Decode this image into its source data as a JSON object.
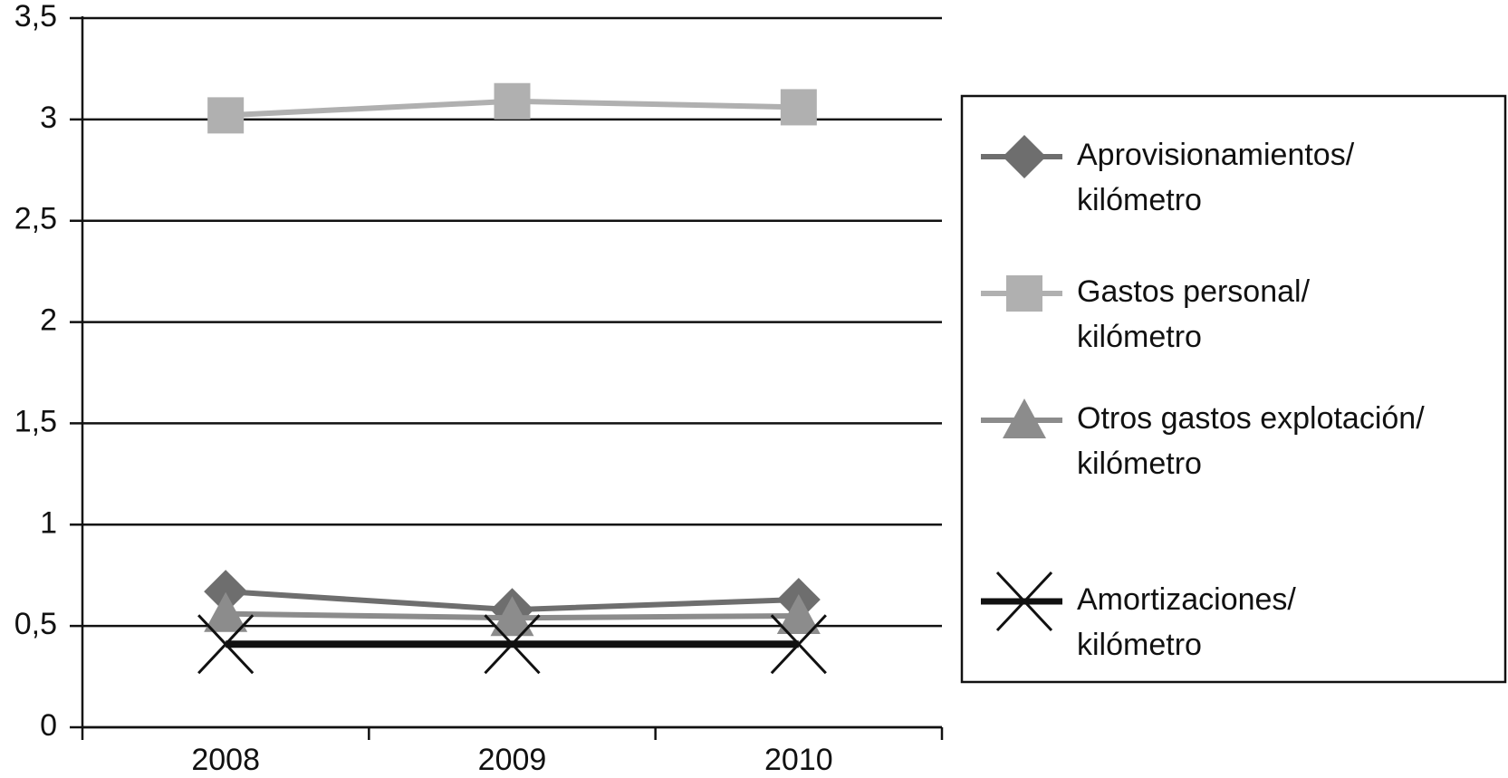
{
  "chart_data": {
    "type": "line",
    "categories": [
      "2008",
      "2009",
      "2010"
    ],
    "series": [
      {
        "name": "Aprovisionamientos/\nkilómetro",
        "color": "#6e6e6e",
        "marker": "diamond",
        "values": [
          0.67,
          0.58,
          0.63
        ]
      },
      {
        "name": "Gastos personal/\nkilómetro",
        "color": "#b0b0b0",
        "marker": "square",
        "values": [
          3.02,
          3.09,
          3.06
        ]
      },
      {
        "name": "Otros gastos explotación/\nkilómetro",
        "color": "#8c8c8c",
        "marker": "triangle",
        "values": [
          0.56,
          0.54,
          0.55
        ]
      },
      {
        "name": "Amortizaciones/\nkilómetro",
        "color": "#111111",
        "marker": "x",
        "values": [
          0.41,
          0.41,
          0.41
        ]
      }
    ],
    "ylim": [
      0,
      3.5
    ],
    "yticks": [
      0,
      {
        "value": 0.5,
        "label": "0,5"
      },
      1,
      {
        "value": 1.5,
        "label": "1,5"
      },
      2,
      {
        "value": 2.5,
        "label": "2,5"
      },
      3,
      {
        "value": 3.5,
        "label": "3,5"
      }
    ],
    "grid": true,
    "legend": "right"
  }
}
